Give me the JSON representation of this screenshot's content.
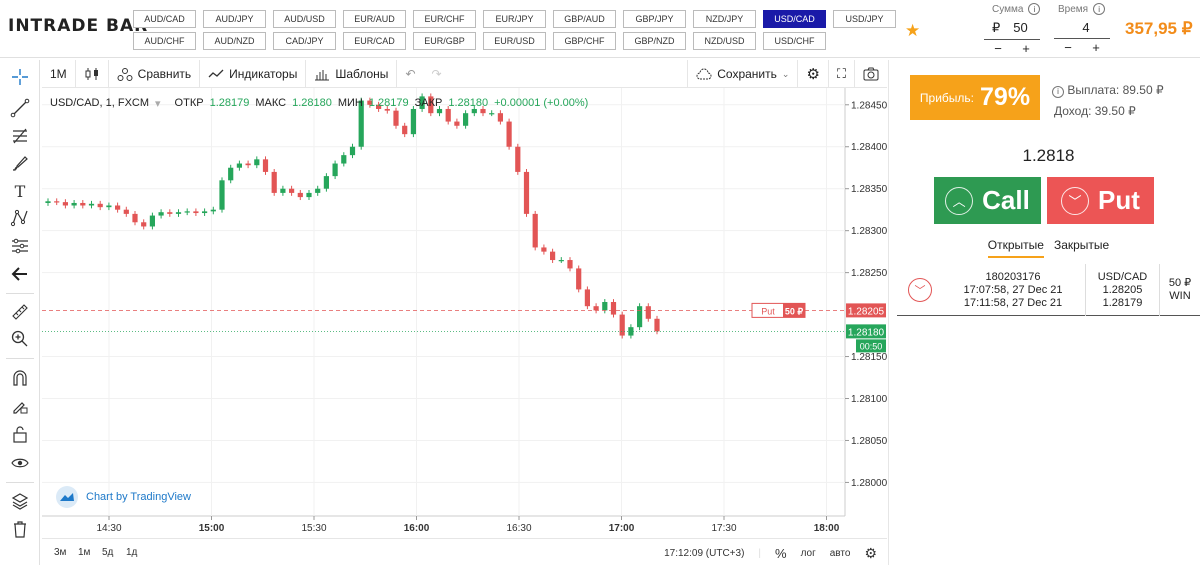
{
  "header": {
    "logo": "INTRADE BAR",
    "pairs_row1": [
      "AUD/CAD",
      "AUD/JPY",
      "AUD/USD",
      "EUR/AUD",
      "EUR/CHF",
      "EUR/JPY",
      "GBP/AUD",
      "GBP/JPY",
      "NZD/JPY",
      "USD/CAD",
      "USD/JPY"
    ],
    "pairs_row2": [
      "AUD/CHF",
      "AUD/NZD",
      "CAD/JPY",
      "EUR/CAD",
      "EUR/GBP",
      "EUR/USD",
      "GBP/CHF",
      "GBP/NZD",
      "NZD/USD",
      "USD/CHF"
    ],
    "active_pair": "USD/CAD",
    "amount_label": "Сумма",
    "amount_currency": "₽",
    "amount_value": "50",
    "time_label": "Время",
    "time_value": "4",
    "minus": "−",
    "plus": "+",
    "balance": "357,95 ₽"
  },
  "chart_header": {
    "interval": "1M",
    "compare": "Сравнить",
    "indicators": "Индикаторы",
    "templates": "Шаблоны",
    "save": "Сохранить"
  },
  "legend": {
    "symbol": "USD/CAD, 1, FXCM",
    "open_label": "ОТКР",
    "open": "1.28179",
    "high_label": "МАКС",
    "high": "1.28180",
    "low_label": "МИН",
    "low": "1.28179",
    "close_label": "ЗАКР",
    "close": "1.28180",
    "change": "+0.00001 (+0.00%)"
  },
  "chart_data": {
    "type": "candlestick",
    "xlabel": "",
    "ylabel": "",
    "ylim": [
      1.2796,
      1.2847
    ],
    "y_ticks": [
      "1.28450",
      "1.28400",
      "1.28350",
      "1.28300",
      "1.28250",
      "1.28150",
      "1.28100",
      "1.28050",
      "1.28000"
    ],
    "x_ticks": [
      "14:30",
      "15:00",
      "15:30",
      "16:00",
      "16:30",
      "17:00",
      "17:30",
      "18:00"
    ],
    "close_path": [
      1.28335,
      1.28334,
      1.2833,
      1.28333,
      1.2833,
      1.28332,
      1.28328,
      1.2833,
      1.28325,
      1.2832,
      1.2831,
      1.28305,
      1.28318,
      1.28322,
      1.2832,
      1.28322,
      1.28323,
      1.28321,
      1.28323,
      1.28325,
      1.2836,
      1.28375,
      1.2838,
      1.28378,
      1.28385,
      1.2837,
      1.28345,
      1.2835,
      1.28345,
      1.2834,
      1.28345,
      1.2835,
      1.28365,
      1.2838,
      1.2839,
      1.284,
      1.28455,
      1.2845,
      1.28445,
      1.28443,
      1.28425,
      1.28415,
      1.28445,
      1.2846,
      1.2844,
      1.28445,
      1.2843,
      1.28425,
      1.2844,
      1.28445,
      1.2844,
      1.2844,
      1.2843,
      1.284,
      1.2837,
      1.2832,
      1.2828,
      1.28275,
      1.28265,
      1.28265,
      1.28255,
      1.2823,
      1.2821,
      1.28205,
      1.28215,
      1.282,
      1.28175,
      1.28185,
      1.2821,
      1.28195,
      1.2818
    ],
    "order_level": "1.28205",
    "order_label": "Put",
    "order_amount": "50 ₽",
    "current_price": "1.28180",
    "countdown": "00:50",
    "colors": {
      "up": "#26a65b",
      "down": "#e25555"
    }
  },
  "chart_footer": {
    "attribution": "Chart by TradingView",
    "timeframes": [
      "3м",
      "1м",
      "5д",
      "1д"
    ],
    "clock": "17:12:09 (UTC+3)",
    "percent": "%",
    "log": "лог",
    "auto": "авто"
  },
  "panel": {
    "profit_label": "Прибыль:",
    "profit_pct": "79%",
    "payout": "Выплата: 89.50 ₽",
    "income": "Доход: 39.50 ₽",
    "price": "1.2818",
    "call": "Call",
    "put": "Put",
    "tab_open": "Открытые",
    "tab_closed": "Закрытые",
    "trade": {
      "id": "180203176",
      "opened": "17:07:58, 27 Dec 21",
      "closed": "17:11:58, 27 Dec 21",
      "pair": "USD/CAD",
      "open_price": "1.28205",
      "close_price": "1.28179",
      "amount": "50 ₽",
      "result": "WIN"
    }
  }
}
